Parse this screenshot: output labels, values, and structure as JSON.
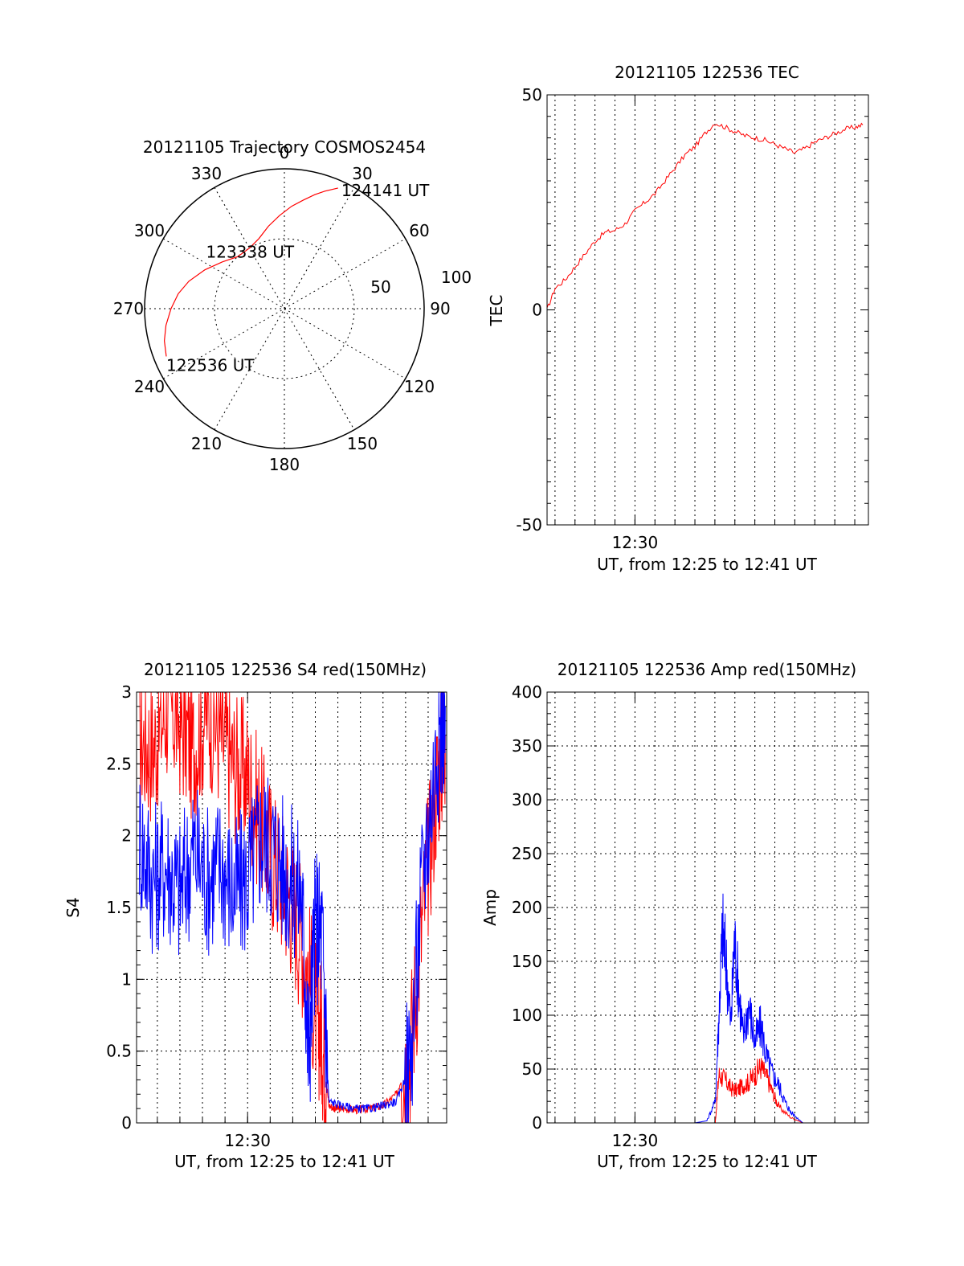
{
  "chart_data": [
    {
      "type": "polar",
      "title": "20121105 Trajectory COSMOS2454",
      "azimuth_labels": [
        "0",
        "30",
        "60",
        "90",
        "120",
        "150",
        "180",
        "210",
        "240",
        "270",
        "300",
        "330"
      ],
      "radial_labels": [
        "50",
        "100"
      ],
      "track": {
        "color": "#ff0000",
        "points": [
          {
            "az": 248,
            "el": 8
          },
          {
            "az": 255,
            "el": 10
          },
          {
            "az": 262,
            "el": 13
          },
          {
            "az": 270,
            "el": 17
          },
          {
            "az": 278,
            "el": 21
          },
          {
            "az": 286,
            "el": 26
          },
          {
            "az": 296,
            "el": 33
          },
          {
            "az": 307,
            "el": 40
          },
          {
            "az": 318,
            "el": 45
          },
          {
            "az": 330,
            "el": 45
          },
          {
            "az": 340,
            "el": 42
          },
          {
            "az": 349,
            "el": 36
          },
          {
            "az": 357,
            "el": 30
          },
          {
            "az": 4,
            "el": 24
          },
          {
            "az": 10,
            "el": 19
          },
          {
            "az": 15,
            "el": 14
          },
          {
            "az": 19,
            "el": 10
          },
          {
            "az": 24,
            "el": 5
          }
        ]
      },
      "annotations": [
        {
          "text": "124141 UT",
          "az": 24,
          "el": 5
        },
        {
          "text": "123338 UT",
          "az": 330,
          "el": 45
        },
        {
          "text": "122536 UT",
          "az": 248,
          "el": 8
        }
      ]
    },
    {
      "type": "line",
      "title": "20121105 122536 TEC",
      "xlabel": "UT, from 12:25 to 12:41 UT",
      "ylabel": "TEC",
      "xlim": [
        12.4267,
        12.6947
      ],
      "ylim": [
        -50,
        50
      ],
      "yticks": [
        "-50",
        "0",
        "50"
      ],
      "xticks": [
        "12:30"
      ],
      "grid": "vertical dotted, every 1 min",
      "series": [
        {
          "color": "#ff0000",
          "x": [
            12.4267,
            12.4333,
            12.4417,
            12.45,
            12.4583,
            12.4667,
            12.475,
            12.4833,
            12.4917,
            12.5,
            12.5083,
            12.5167,
            12.525,
            12.5333,
            12.5417,
            12.55,
            12.5583,
            12.5667,
            12.575,
            12.5833,
            12.5917,
            12.6,
            12.6083,
            12.6167,
            12.625,
            12.6333,
            12.6417,
            12.65,
            12.6583,
            12.6667,
            12.675,
            12.6833,
            12.69
          ],
          "y": [
            0,
            5,
            7,
            10,
            13,
            16,
            18,
            18.5,
            20,
            23,
            25,
            27,
            30,
            33,
            36,
            38,
            41,
            43.5,
            42.5,
            41.5,
            40.5,
            40,
            39.5,
            38.5,
            37.5,
            36.5,
            37.5,
            39,
            40,
            41,
            42,
            42.5,
            43
          ]
        }
      ]
    },
    {
      "type": "line",
      "title": "20121105 122536 S4 red(150MHz)",
      "xlabel": "UT, from 12:25 to 12:41 UT",
      "ylabel": "S4",
      "xlim": [
        12.418,
        12.647
      ],
      "ylim": [
        0,
        3
      ],
      "yticks": [
        "0",
        "0.5",
        "1",
        "1.5",
        "2",
        "2.5",
        "3"
      ],
      "xticks": [
        "12:30"
      ],
      "grid": "dotted both axes",
      "series": [
        {
          "color": "#ff0000",
          "x": [
            12.42,
            12.43,
            12.44,
            12.45,
            12.46,
            12.47,
            12.48,
            12.49,
            12.5,
            12.51,
            12.52,
            12.53,
            12.54,
            12.55,
            12.555,
            12.56,
            12.565,
            12.57,
            12.58,
            12.59,
            12.6,
            12.61,
            12.62,
            12.63,
            12.64,
            12.646
          ],
          "y": [
            2.7,
            2.6,
            2.9,
            2.8,
            2.6,
            2.9,
            2.7,
            2.5,
            2.4,
            2.1,
            1.8,
            1.6,
            1.3,
            0.8,
            0.6,
            0.12,
            0.1,
            0.1,
            0.09,
            0.1,
            0.12,
            0.2,
            0.5,
            1.5,
            2.4,
            2.7
          ]
        },
        {
          "color": "#0000ff",
          "x": [
            12.42,
            12.43,
            12.44,
            12.45,
            12.46,
            12.47,
            12.48,
            12.49,
            12.5,
            12.51,
            12.52,
            12.53,
            12.54,
            12.545,
            12.55,
            12.555,
            12.56,
            12.57,
            12.58,
            12.59,
            12.6,
            12.61,
            12.62,
            12.63,
            12.64,
            12.646
          ],
          "y": [
            2.0,
            1.7,
            1.8,
            1.6,
            1.9,
            1.7,
            1.8,
            1.6,
            1.7,
            2.0,
            1.9,
            1.7,
            1.6,
            0.45,
            1.4,
            1.3,
            0.15,
            0.12,
            0.1,
            0.1,
            0.12,
            0.15,
            0.4,
            1.8,
            2.6,
            2.9
          ]
        }
      ]
    },
    {
      "type": "line",
      "title": "20121105 122536 Amp red(150MHz)",
      "xlabel": "UT, from 12:25 to 12:41 UT",
      "ylabel": "Amp",
      "xlim": [
        12.4267,
        12.6947
      ],
      "ylim": [
        0,
        400
      ],
      "yticks": [
        "0",
        "50",
        "100",
        "150",
        "200",
        "250",
        "300",
        "350",
        "400"
      ],
      "xticks": [
        "12:30"
      ],
      "grid": "dotted both axes",
      "series": [
        {
          "color": "#ff0000",
          "x": [
            12.4267,
            12.55,
            12.567,
            12.57,
            12.575,
            12.58,
            12.585,
            12.59,
            12.595,
            12.6,
            12.605,
            12.61,
            12.615,
            12.62,
            12.63,
            12.64,
            12.6947
          ],
          "y": [
            0,
            0,
            0,
            45,
            40,
            32,
            30,
            35,
            38,
            45,
            52,
            42,
            28,
            15,
            5,
            0,
            0
          ]
        },
        {
          "color": "#0000ff",
          "x": [
            12.4267,
            12.55,
            12.56,
            12.567,
            12.57,
            12.573,
            12.576,
            12.58,
            12.583,
            12.587,
            12.59,
            12.595,
            12.6,
            12.605,
            12.61,
            12.615,
            12.62,
            12.625,
            12.63,
            12.64,
            12.6947
          ],
          "y": [
            0,
            0,
            2,
            20,
            100,
            180,
            150,
            90,
            170,
            120,
            80,
            110,
            75,
            90,
            60,
            45,
            35,
            20,
            10,
            0,
            0
          ]
        }
      ]
    }
  ]
}
